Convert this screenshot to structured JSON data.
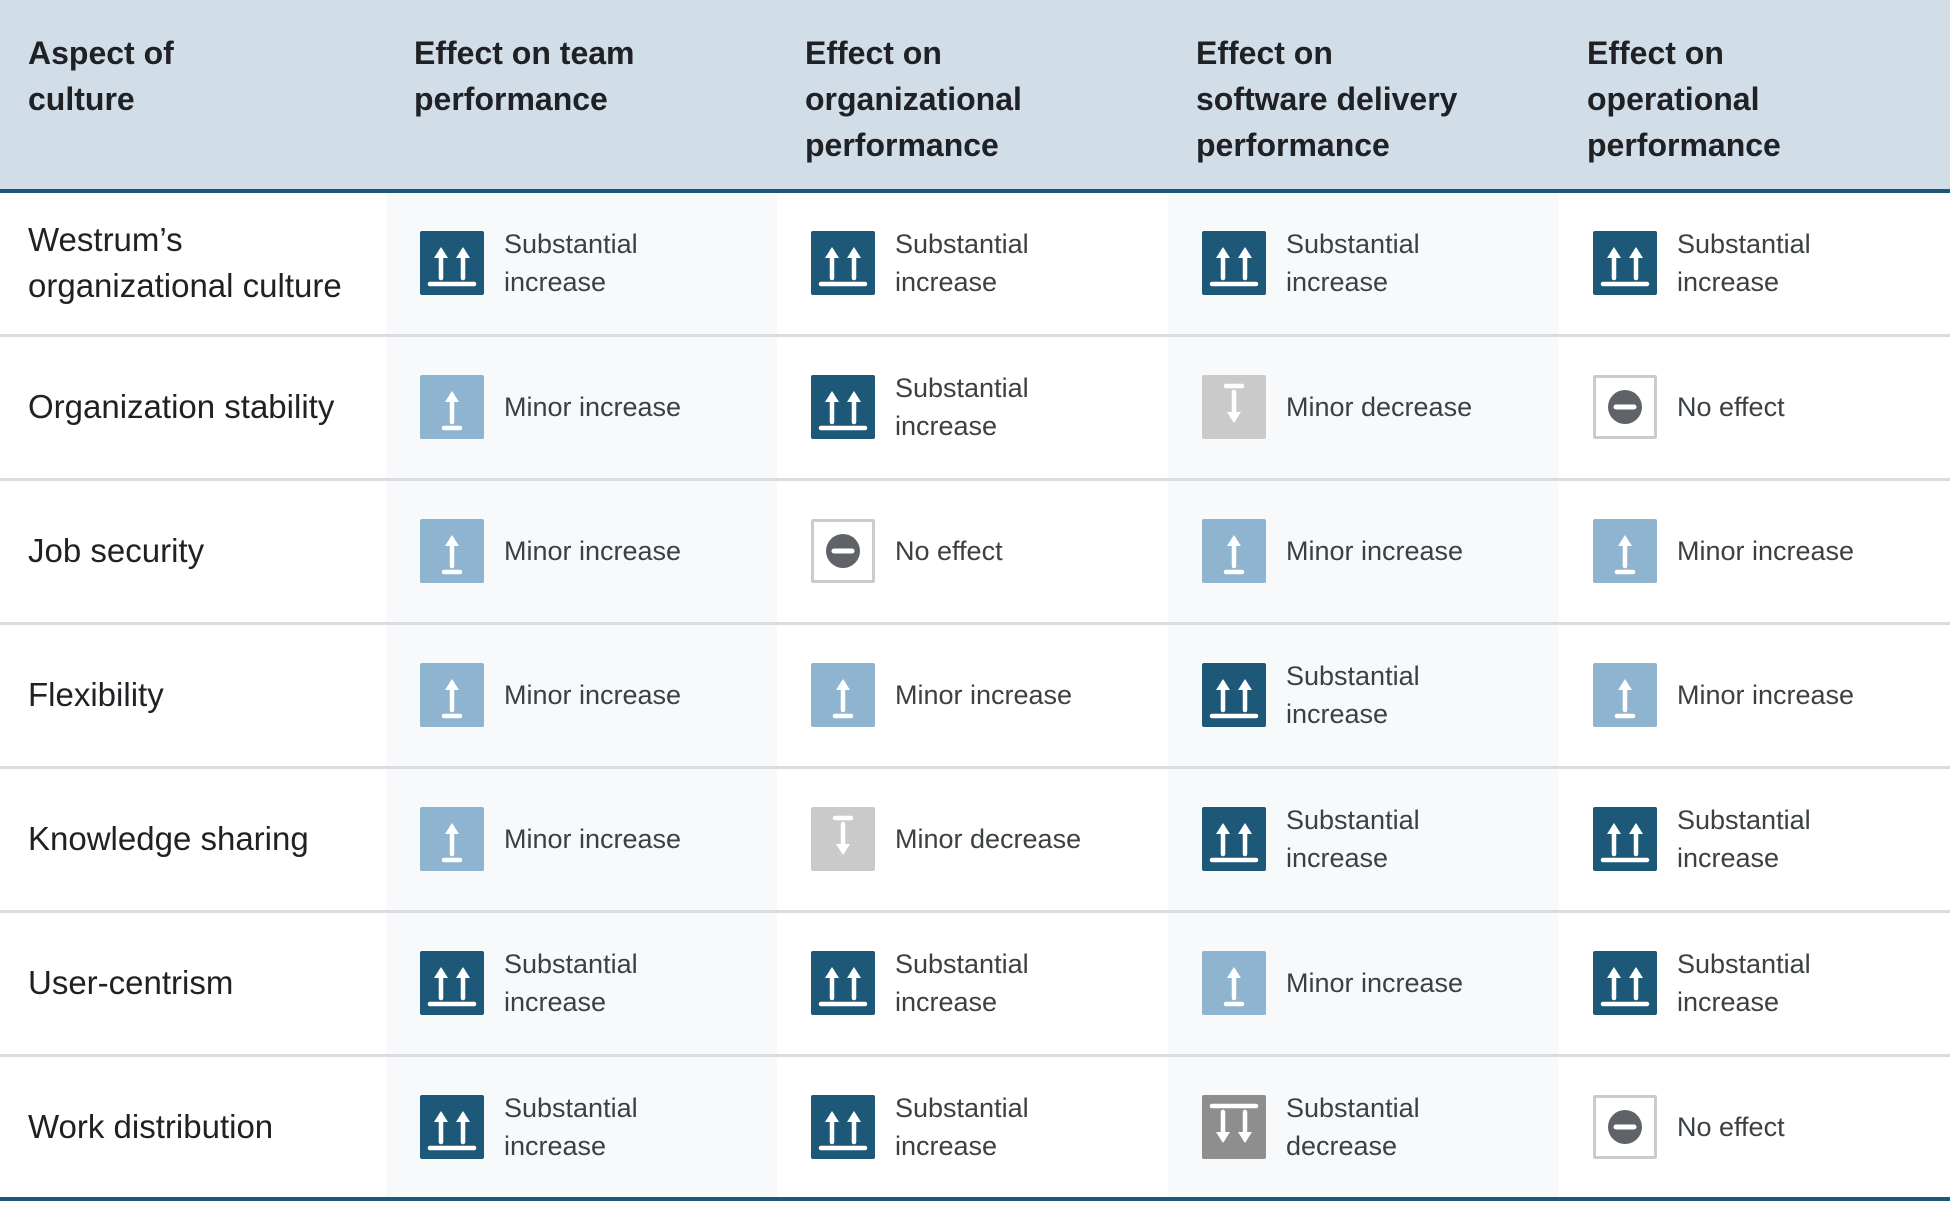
{
  "columns": [
    [
      "Aspect of",
      "culture"
    ],
    [
      "Effect on team",
      "performance"
    ],
    [
      "Effect on",
      "organizational",
      "performance"
    ],
    [
      "Effect on",
      "software delivery",
      "performance"
    ],
    [
      "Effect on",
      "operational",
      "performance"
    ]
  ],
  "rows": [
    {
      "aspect": "Westrum’s organizational culture",
      "effects": [
        "Substantial increase",
        "Substantial increase",
        "Substantial increase",
        "Substantial increase"
      ]
    },
    {
      "aspect": "Organization stability",
      "effects": [
        "Minor increase",
        "Substantial increase",
        "Minor decrease",
        "No effect"
      ]
    },
    {
      "aspect": "Job security",
      "effects": [
        "Minor increase",
        "No effect",
        "Minor increase",
        "Minor increase"
      ]
    },
    {
      "aspect": "Flexibility",
      "effects": [
        "Minor increase",
        "Minor increase",
        "Substantial increase",
        "Minor increase"
      ]
    },
    {
      "aspect": "Knowledge sharing",
      "effects": [
        "Minor increase",
        "Minor decrease",
        "Substantial increase",
        "Substantial increase"
      ]
    },
    {
      "aspect": "User-centrism",
      "effects": [
        "Substantial increase",
        "Substantial increase",
        "Minor increase",
        "Substantial increase"
      ]
    },
    {
      "aspect": "Work distribution",
      "effects": [
        "Substantial increase",
        "Substantial increase",
        "Substantial decrease",
        "No effect"
      ]
    }
  ],
  "effect_icons": {
    "Substantial increase": {
      "icon": "double-up-arrow-icon",
      "color": "#1d5878"
    },
    "Minor increase": {
      "icon": "up-arrow-icon",
      "color": "#8fb4cf"
    },
    "Minor decrease": {
      "icon": "down-arrow-icon",
      "color": "#cacaca"
    },
    "Substantial decrease": {
      "icon": "double-down-arrow-icon",
      "color": "#8e8e8e"
    },
    "No effect": {
      "icon": "minus-circle-icon",
      "color": "#5f6368"
    }
  }
}
